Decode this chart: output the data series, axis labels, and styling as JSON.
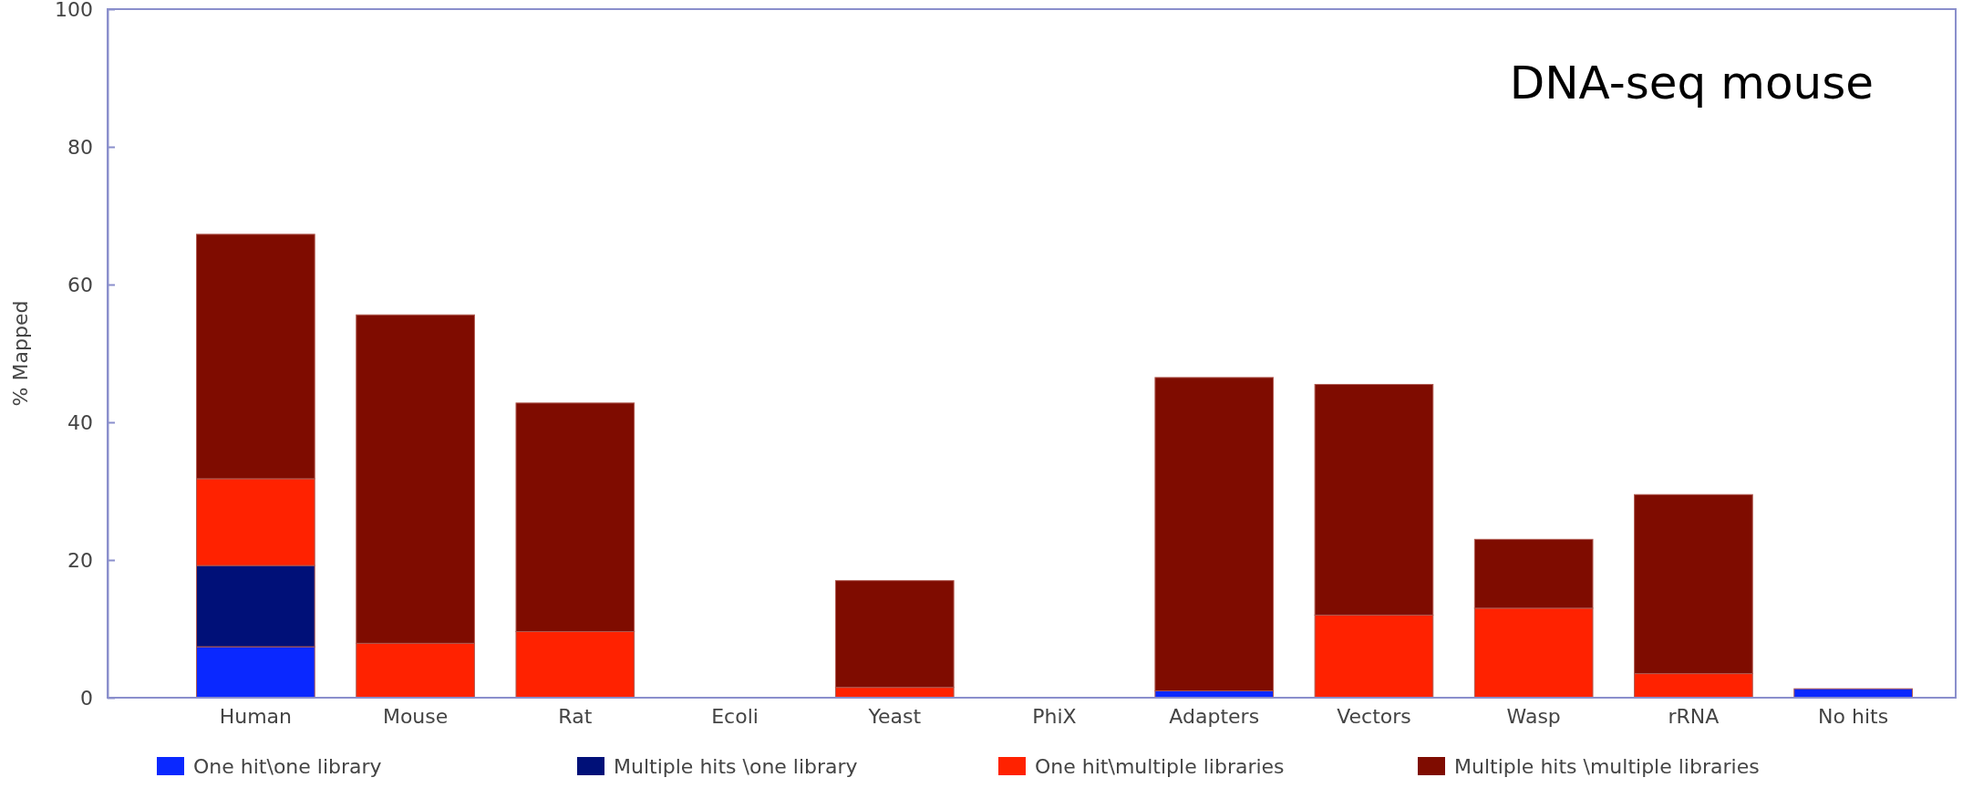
{
  "chart_data": {
    "type": "bar",
    "title": "DNA-seq mouse",
    "ylabel": "% Mapped",
    "stacked": true,
    "legend": "bottom",
    "grid": false,
    "categories": [
      "Human",
      "Mouse",
      "Rat",
      "Ecoli",
      "Yeast",
      "PhiX",
      "Adapters",
      "Vectors",
      "Wasp",
      "rRNA",
      "No hits"
    ],
    "series": [
      {
        "name": "One hit\\one library",
        "color": "#0a28ff",
        "values": [
          7.4,
          0,
          0,
          0,
          0,
          0,
          1,
          0,
          0,
          0,
          1.3
        ]
      },
      {
        "name": "Multiple hits \\one library",
        "color": "#001078",
        "values": [
          11.8,
          0,
          0,
          0,
          0,
          0,
          0,
          0,
          0,
          0,
          0
        ]
      },
      {
        "name": "One hit\\multiple libraries",
        "color": "#ff2200",
        "values": [
          12.6,
          7.9,
          9.6,
          0,
          1.5,
          0,
          0,
          12,
          13,
          3.5,
          0
        ]
      },
      {
        "name": "Multiple hits \\multiple libraries",
        "color": "#7f0c00",
        "values": [
          35.5,
          47.7,
          33.2,
          0,
          15.5,
          0,
          45.5,
          33.5,
          10,
          26,
          0
        ]
      }
    ],
    "ylim": [
      0,
      100
    ],
    "yticks": [
      0,
      20,
      40,
      60,
      80,
      100
    ]
  }
}
